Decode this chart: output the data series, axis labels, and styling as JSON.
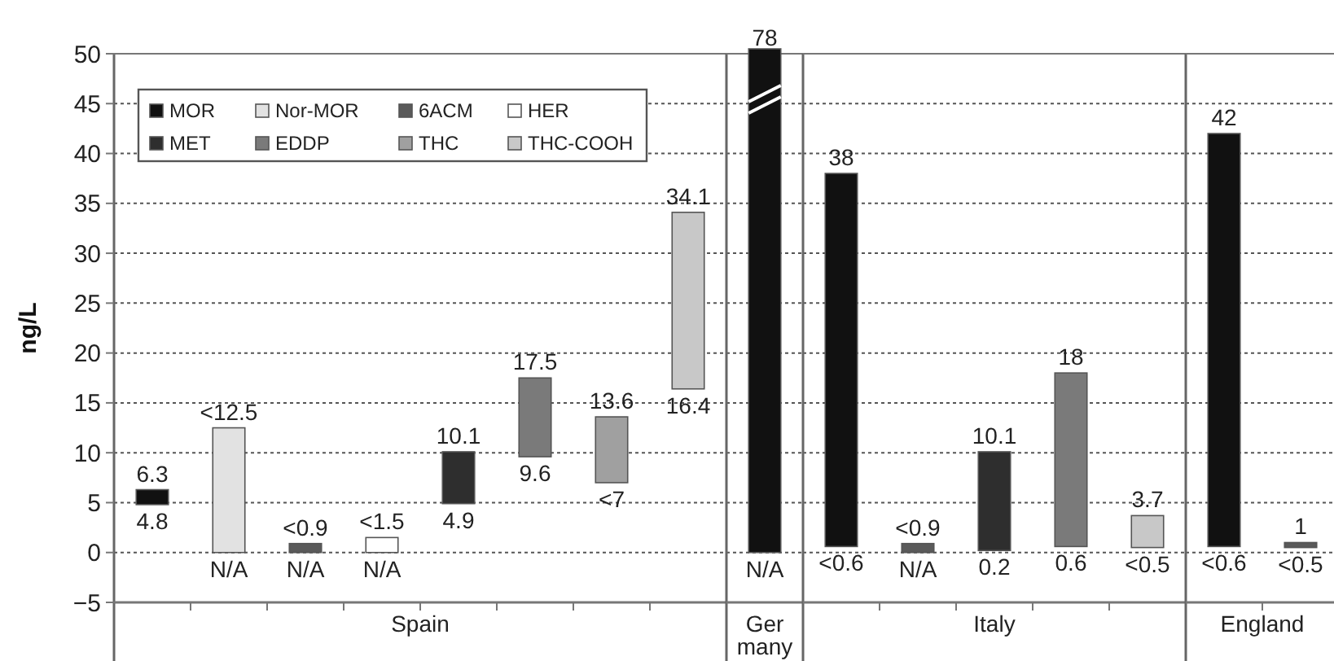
{
  "chart_data": [
    {
      "type": "bar",
      "stacked": true,
      "xlabel": "Spain",
      "ylabel": "ng/L",
      "categories": [
        null,
        null,
        null,
        null,
        null,
        null,
        null,
        null
      ],
      "ylim": [
        -5,
        50
      ],
      "yticks": [
        {
          "value": -5,
          "label": "−5"
        },
        0,
        5,
        10,
        15,
        20,
        25,
        30,
        35,
        40,
        45,
        50
      ],
      "tick_labels": "y",
      "grid": "y",
      "legend": "top left",
      "series": [
        {
          "name": "MOR",
          "color": "#111111",
          "values": [
            1.5,
            null,
            null,
            null,
            null,
            null,
            null,
            null
          ],
          "base": [
            4.8,
            null,
            null,
            null,
            null,
            null,
            null,
            null
          ]
        },
        {
          "name": "Nor-MOR",
          "color": "#e2e2e2",
          "values": [
            null,
            12.5,
            null,
            null,
            null,
            null,
            null,
            null
          ],
          "base": [
            null,
            0,
            null,
            null,
            null,
            null,
            null,
            null
          ]
        },
        {
          "name": "6ACM",
          "color": "#5a5a5a",
          "values": [
            null,
            null,
            0.9,
            null,
            null,
            null,
            null,
            null
          ],
          "base": [
            null,
            null,
            0,
            null,
            null,
            null,
            null,
            null
          ]
        },
        {
          "name": "HER",
          "color": "#ffffff",
          "values": [
            null,
            null,
            null,
            1.5,
            null,
            null,
            null,
            null
          ],
          "base": [
            null,
            null,
            null,
            0,
            null,
            null,
            null,
            null
          ]
        },
        {
          "name": "MET",
          "color": "#2e2e2e",
          "values": [
            null,
            null,
            null,
            null,
            5.2,
            null,
            null,
            null
          ],
          "base": [
            null,
            null,
            null,
            null,
            4.9,
            null,
            null,
            null
          ]
        },
        {
          "name": "EDDP",
          "color": "#7a7a7a",
          "values": [
            null,
            null,
            null,
            null,
            null,
            7.9,
            null,
            null
          ],
          "base": [
            null,
            null,
            null,
            null,
            null,
            9.6,
            null,
            null
          ]
        },
        {
          "name": "THC",
          "color": "#a0a0a0",
          "values": [
            null,
            null,
            null,
            null,
            null,
            null,
            6.6,
            null
          ],
          "base": [
            null,
            null,
            null,
            null,
            null,
            null,
            7,
            null
          ]
        },
        {
          "name": "THC-COOH",
          "color": "#c8c8c8",
          "values": [
            null,
            null,
            null,
            null,
            null,
            null,
            null,
            17.7
          ],
          "base": [
            null,
            null,
            null,
            null,
            null,
            null,
            null,
            16.4
          ]
        }
      ],
      "annotations": [
        {
          "text": "6.3",
          "y": 6.3
        },
        {
          "text": "4.8",
          "y": 4.8
        },
        {
          "text": "<12.5",
          "y": 12.5
        },
        {
          "text": "N/A",
          "y": 0
        },
        {
          "text": "<0.9",
          "y": 0.9
        },
        {
          "text": "N/A",
          "y": 0
        },
        {
          "text": "<1.5",
          "y": 1.5
        },
        {
          "text": "N/A",
          "y": 0
        },
        {
          "text": "10.1",
          "y": 10.1
        },
        {
          "text": "4.9",
          "y": 4.9
        },
        {
          "text": "17.5",
          "y": 17.5
        },
        {
          "text": "9.6",
          "y": 9.6
        },
        {
          "text": "13.6",
          "y": 13.6
        },
        {
          "text": "<7",
          "y": 7
        },
        {
          "text": "34.1",
          "y": 34.1
        },
        {
          "text": "16.4",
          "y": 16.4
        }
      ]
    },
    {
      "type": "bar",
      "stacked": true,
      "xlabel": "Germany",
      "categories": [
        null
      ],
      "ylim": [
        -5,
        50
      ],
      "yticks": [
        0,
        5,
        10,
        15,
        20,
        25,
        30,
        35,
        40,
        45,
        50
      ],
      "tick_labels": false,
      "grid": "y",
      "series": [
        {
          "color": "#111111",
          "values": [
            78
          ],
          "base": [
            0
          ]
        }
      ],
      "annotations": [
        "78",
        {
          "text": "N/A",
          "y": 0
        }
      ]
    },
    {
      "type": "bar",
      "stacked": true,
      "xlabel": "Italy",
      "categories": [
        null,
        null,
        null,
        null,
        null
      ],
      "ylim": [
        -5,
        50
      ],
      "yticks": [
        0,
        5,
        10,
        15,
        20,
        25,
        30,
        35,
        40,
        45,
        50
      ],
      "tick_labels": false,
      "grid": "y",
      "series": [
        {
          "color": "#111111",
          "values": [
            37.4,
            null,
            null,
            null,
            null
          ],
          "base": [
            0.6,
            null,
            null,
            null,
            null
          ]
        },
        {
          "color": "#5a5a5a",
          "values": [
            null,
            0.9,
            null,
            null,
            null
          ],
          "base": [
            null,
            0,
            null,
            null,
            null
          ]
        },
        {
          "color": "#2e2e2e",
          "values": [
            null,
            null,
            9.9,
            null,
            null
          ],
          "base": [
            null,
            null,
            0.2,
            null,
            null
          ]
        },
        {
          "color": "#7a7a7a",
          "values": [
            null,
            null,
            null,
            17.4,
            null
          ],
          "base": [
            null,
            null,
            null,
            0.6,
            null
          ]
        },
        {
          "color": "#c8c8c8",
          "values": [
            null,
            null,
            null,
            null,
            3.2
          ],
          "base": [
            null,
            null,
            null,
            null,
            0.5
          ]
        }
      ],
      "annotations": [
        {
          "text": "38",
          "y": 38
        },
        {
          "text": "<0.6",
          "y": 0.6
        },
        {
          "text": "<0.9",
          "y": 0.9
        },
        {
          "text": "N/A",
          "y": 0
        },
        {
          "text": "10.1",
          "y": 10.1
        },
        {
          "text": "0.2",
          "y": 0.2
        },
        {
          "text": "18",
          "y": 18
        },
        {
          "text": "0.6",
          "y": 0.6
        },
        {
          "text": "3.7",
          "y": 3.7
        },
        {
          "text": "<0.5",
          "y": 0.5
        }
      ]
    },
    {
      "type": "bar",
      "stacked": true,
      "xlabel": "England",
      "categories": [
        null,
        null
      ],
      "ylim": [
        -5,
        50
      ],
      "yticks": [
        0,
        5,
        10,
        15,
        20,
        25,
        30,
        35,
        40,
        45,
        50
      ],
      "tick_labels": false,
      "grid": "y",
      "series": [
        {
          "color": "#111111",
          "values": [
            41.4,
            null
          ],
          "base": [
            0.6,
            null
          ]
        },
        {
          "color": "#5a5a5a",
          "values": [
            null,
            0.5
          ],
          "base": [
            null,
            0.5
          ]
        }
      ],
      "annotations": [
        {
          "text": "42",
          "y": 42
        },
        {
          "text": "<0.6",
          "y": 0.6
        },
        {
          "text": "1",
          "y": 1
        },
        {
          "text": "<0.5",
          "y": 0.5
        }
      ]
    }
  ]
}
